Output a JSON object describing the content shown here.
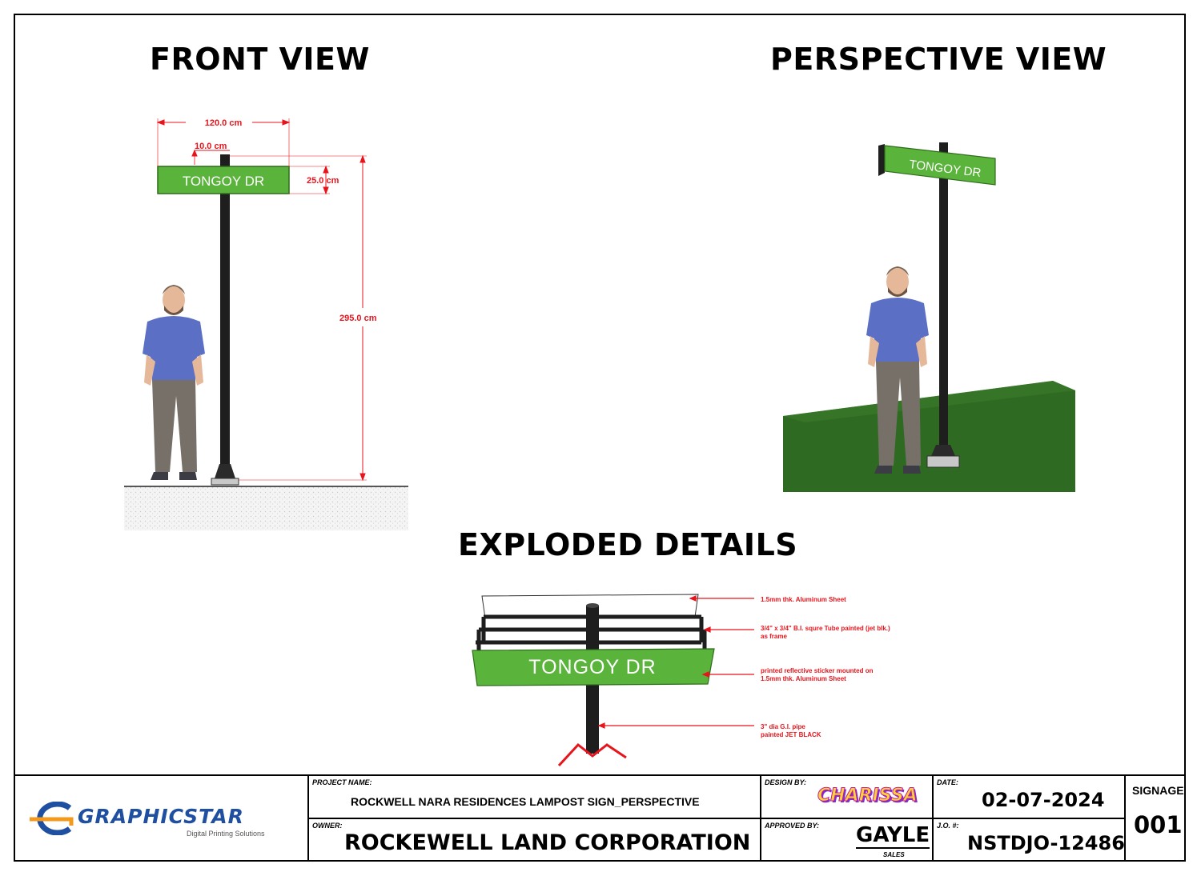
{
  "views": {
    "front_title": "FRONT VIEW",
    "perspective_title": "PERSPECTIVE VIEW",
    "exploded_title": "EXPLODED DETAILS"
  },
  "sign_text": "TONGOY DR",
  "dimensions": {
    "width": "120.0 cm",
    "offset": "10.0 cm",
    "sign_height": "25.0 cm",
    "pole_height": "295.0 cm"
  },
  "callouts": {
    "sheet_1": "1.5mm thk. Aluminum Sheet",
    "tube_1": "3/4\" x 3/4\" B.I. squre Tube painted (jet blk.)",
    "tube_2": "as frame",
    "sticker_1": "printed reflective sticker mounted on",
    "sticker_2": "1.5mm thk. Aluminum Sheet",
    "pipe_1": "3\" dia G.I. pipe",
    "pipe_2": "painted JET BLACK"
  },
  "title_block": {
    "logo_name": "GRAPHICSTAR",
    "logo_tagline": "Digital Printing Solutions",
    "project_label": "PROJECT NAME:",
    "project_name": "ROCKWELL NARA RESIDENCES LAMPOST SIGN_PERSPECTIVE",
    "owner_label": "OWNER:",
    "owner_name": "ROCKEWELL LAND CORPORATION",
    "design_label": "DESIGN BY:",
    "designer": "CHARISSA",
    "approved_label": "APPROVED BY:",
    "approver": "GAYLE",
    "approver_dept": "SALES",
    "date_label": "DATE:",
    "date": "02-07-2024",
    "jo_label": "J.O. #:",
    "jo_number": "NSTDJO-12486",
    "sheet_type": "SIGNAGE",
    "sheet_number": "001"
  },
  "colors": {
    "sign_green": "#5ab33a",
    "dimension_red": "#e8141c",
    "logo_blue": "#1e4fa0",
    "logo_orange": "#f39a1e",
    "grass": "#2f6a22"
  }
}
